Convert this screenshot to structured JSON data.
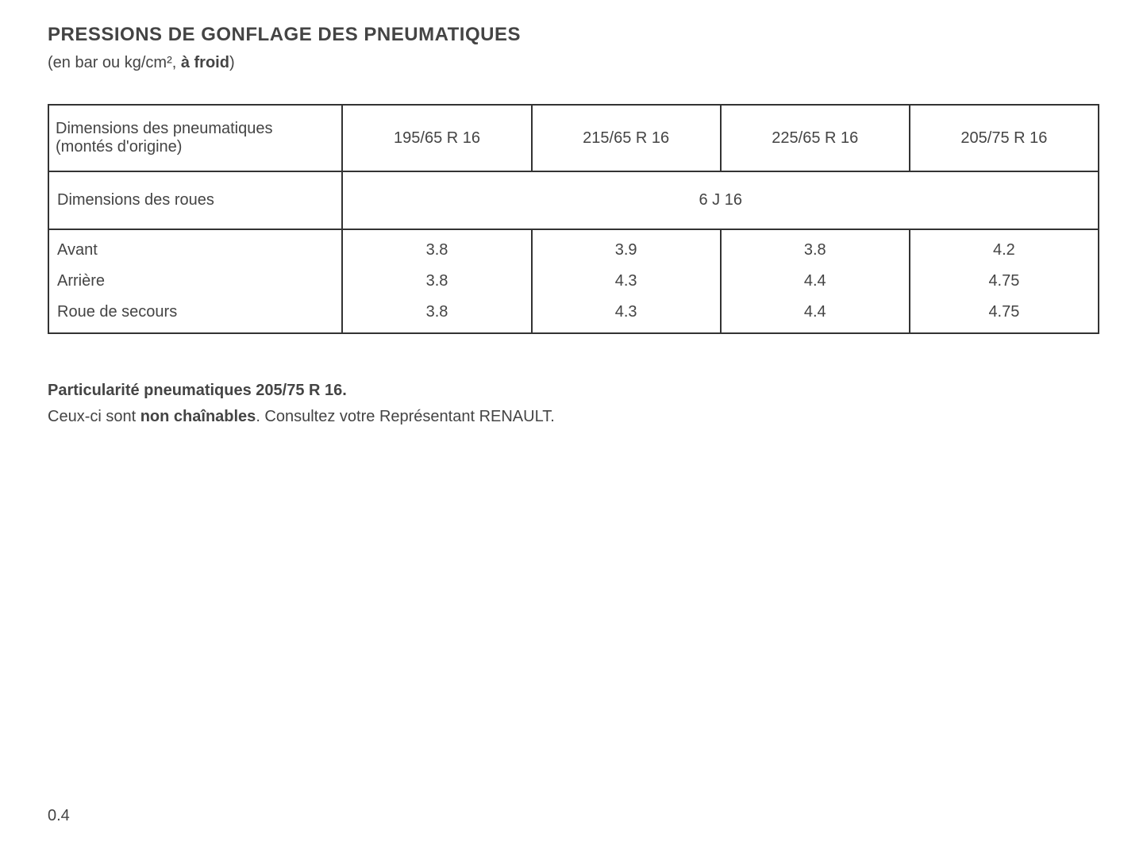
{
  "title": "PRESSIONS DE GONFLAGE DES PNEUMATIQUES",
  "subtitle_prefix": "(en bar ou kg/cm², ",
  "subtitle_bold": "à froid",
  "subtitle_suffix": ")",
  "table": {
    "header_label": "Dimensions des pneumatiques (montés d'origine)",
    "tire_sizes": [
      "195/65 R 16",
      "215/65 R 16",
      "225/65 R 16",
      "205/75 R 16"
    ],
    "wheel_label": "Dimensions des roues",
    "wheel_size": "6 J 16",
    "rows": [
      {
        "label": "Avant",
        "values": [
          "3.8",
          "3.9",
          "3.8",
          "4.2"
        ]
      },
      {
        "label": "Arrière",
        "values": [
          "3.8",
          "4.3",
          "4.4",
          "4.75"
        ]
      },
      {
        "label": "Roue de secours",
        "values": [
          "3.8",
          "4.3",
          "4.4",
          "4.75"
        ]
      }
    ]
  },
  "note_title": "Particularité pneumatiques 205/75 R 16.",
  "note_prefix": "Ceux-ci sont ",
  "note_bold": "non chaînables",
  "note_suffix": ". Consultez votre Représentant RENAULT.",
  "page_number": "0.4",
  "colors": {
    "text": "#444444",
    "border": "#333333",
    "background": "#ffffff"
  },
  "fonts": {
    "title_size": 24,
    "body_size": 20,
    "family": "Arial"
  }
}
